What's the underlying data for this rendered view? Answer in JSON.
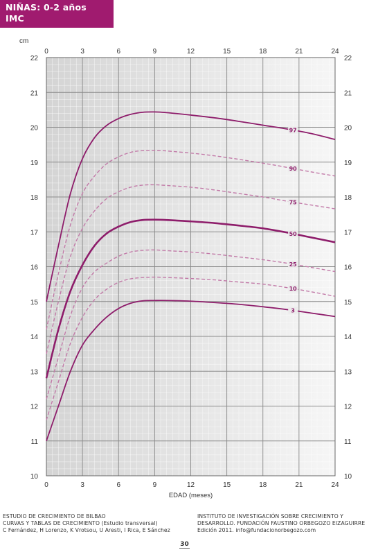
{
  "header": {
    "title": "NIÑAS: 0-2 años",
    "subtitle": "IMC"
  },
  "footer": {
    "left": [
      "ESTUDIO DE CRECIMIENTO DE BILBAO",
      "CURVAS Y TABLAS DE CRECIMIENTO (Estudio transversal)",
      "C Fernández, H Lorenzo, K Vrotsou, U Aresti, I Rica, E Sánchez"
    ],
    "right": [
      "INSTITUTO DE INVESTIGACIÓN SOBRE CRECIMIENTO Y",
      "DESARROLLO. FUNDACIÓN FAUSTINO ORBEGOZO EIZAGUIRRE",
      "Edición 2011. info@fundacionorbegozo.com"
    ],
    "page_number": "30"
  },
  "chart_data": {
    "type": "line",
    "title": "",
    "xlabel": "EDAD (meses)",
    "ylabel": "cm",
    "xlim": [
      0,
      24
    ],
    "ylim": [
      10,
      22
    ],
    "xticks": [
      0,
      3,
      6,
      9,
      12,
      15,
      18,
      21,
      24
    ],
    "yticks": [
      10,
      11,
      12,
      13,
      14,
      15,
      16,
      17,
      18,
      19,
      20,
      21,
      22
    ],
    "grid": true,
    "colors": {
      "solid": "#8e1d6b",
      "dashed": "#c27aa8",
      "plot_bg_dark": "#d4d4d4",
      "plot_bg_light": "#f4f4f4",
      "grid": "#ffffff",
      "label": "#8e1d6b"
    },
    "series": [
      {
        "name": "3",
        "style": "solid",
        "x": [
          0,
          1,
          2,
          3,
          4,
          5,
          6,
          7,
          8,
          9,
          10,
          12,
          14,
          16,
          18,
          20,
          22,
          24
        ],
        "y": [
          11.0,
          12.0,
          13.0,
          13.75,
          14.2,
          14.55,
          14.8,
          14.95,
          15.02,
          15.03,
          15.03,
          15.01,
          14.97,
          14.92,
          14.85,
          14.77,
          14.67,
          14.57
        ]
      },
      {
        "name": "10",
        "style": "dashed",
        "x": [
          0,
          1,
          2,
          3,
          4,
          5,
          6,
          7,
          8,
          9,
          10,
          12,
          14,
          16,
          18,
          20,
          22,
          24
        ],
        "y": [
          11.6,
          12.7,
          13.8,
          14.55,
          15.05,
          15.35,
          15.55,
          15.65,
          15.69,
          15.7,
          15.69,
          15.66,
          15.62,
          15.56,
          15.5,
          15.4,
          15.28,
          15.15
        ]
      },
      {
        "name": "25",
        "style": "dashed",
        "x": [
          0,
          1,
          2,
          3,
          4,
          5,
          6,
          7,
          8,
          9,
          10,
          12,
          14,
          16,
          18,
          20,
          22,
          24
        ],
        "y": [
          12.2,
          13.4,
          14.6,
          15.4,
          15.85,
          16.1,
          16.3,
          16.42,
          16.47,
          16.48,
          16.46,
          16.42,
          16.36,
          16.28,
          16.2,
          16.1,
          15.98,
          15.86
        ]
      },
      {
        "name": "50",
        "style": "solid-bold",
        "x": [
          0,
          1,
          2,
          3,
          4,
          5,
          6,
          7,
          8,
          9,
          10,
          12,
          14,
          16,
          18,
          20,
          22,
          24
        ],
        "y": [
          12.8,
          14.2,
          15.3,
          16.05,
          16.6,
          16.95,
          17.15,
          17.28,
          17.34,
          17.35,
          17.34,
          17.3,
          17.25,
          17.18,
          17.1,
          16.98,
          16.84,
          16.7
        ]
      },
      {
        "name": "75",
        "style": "dashed",
        "x": [
          0,
          1,
          2,
          3,
          4,
          5,
          6,
          7,
          8,
          9,
          10,
          12,
          14,
          16,
          18,
          20,
          22,
          24
        ],
        "y": [
          13.5,
          15.0,
          16.3,
          17.1,
          17.6,
          17.95,
          18.15,
          18.28,
          18.34,
          18.35,
          18.33,
          18.28,
          18.2,
          18.1,
          18.0,
          17.88,
          17.77,
          17.66
        ]
      },
      {
        "name": "90",
        "style": "dashed",
        "x": [
          0,
          1,
          2,
          3,
          4,
          5,
          6,
          7,
          8,
          9,
          10,
          12,
          14,
          16,
          18,
          20,
          22,
          24
        ],
        "y": [
          14.2,
          15.8,
          17.2,
          18.1,
          18.6,
          18.95,
          19.15,
          19.28,
          19.33,
          19.34,
          19.32,
          19.26,
          19.18,
          19.08,
          18.97,
          18.85,
          18.72,
          18.6
        ]
      },
      {
        "name": "97",
        "style": "solid",
        "x": [
          0,
          1,
          2,
          3,
          4,
          5,
          6,
          7,
          8,
          9,
          10,
          12,
          14,
          16,
          18,
          20,
          22,
          24
        ],
        "y": [
          15.0,
          16.6,
          18.1,
          19.1,
          19.7,
          20.05,
          20.25,
          20.37,
          20.43,
          20.44,
          20.42,
          20.35,
          20.27,
          20.17,
          20.06,
          19.95,
          19.82,
          19.65
        ]
      }
    ]
  }
}
